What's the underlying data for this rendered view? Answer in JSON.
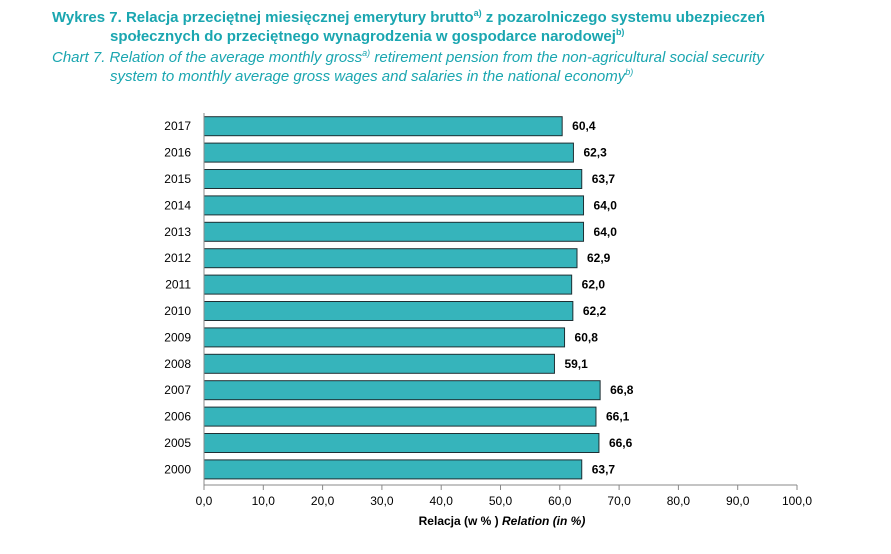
{
  "header": {
    "title_pl_line1": "Wykres 7. Relacja przeciętnej miesięcznej emerytury brutto",
    "title_pl_sup1": "a)",
    "title_pl_line1_end": " z pozarolniczego systemu ubezpieczeń",
    "title_pl_line2": "społecznych do przeciętnego wynagrodzenia w gospodarce narodowej",
    "title_pl_sup2": "b)",
    "title_en_line1": "Chart 7. Relation of the average monthly gross",
    "title_en_sup1": "a)",
    "title_en_line1_end": " retirement pension from the non-agricultural social security",
    "title_en_line2": "system to monthly average gross wages and salaries in the national economy",
    "title_en_sup2": "b)"
  },
  "chart_data": {
    "type": "bar",
    "orientation": "horizontal",
    "categories": [
      "2017",
      "2016",
      "2015",
      "2014",
      "2013",
      "2012",
      "2011",
      "2010",
      "2009",
      "2008",
      "2007",
      "2006",
      "2005",
      "2000"
    ],
    "values": [
      60.4,
      62.3,
      63.7,
      64.0,
      64.0,
      62.9,
      62.0,
      62.2,
      60.8,
      59.1,
      66.8,
      66.1,
      66.6,
      63.7
    ],
    "value_labels": [
      "60,4",
      "62,3",
      "63,7",
      "64,0",
      "64,0",
      "62,9",
      "62,0",
      "62,2",
      "60,8",
      "59,1",
      "66,8",
      "66,1",
      "66,6",
      "63,7"
    ],
    "xlim": [
      0,
      100
    ],
    "xticks": [
      0,
      10,
      20,
      30,
      40,
      50,
      60,
      70,
      80,
      90,
      100
    ],
    "xtick_labels": [
      "0,0",
      "10,0",
      "20,0",
      "30,0",
      "40,0",
      "50,0",
      "60,0",
      "70,0",
      "80,0",
      "90,0",
      "100,0"
    ],
    "xlabel_pl": "Relacja (w % )",
    "xlabel_en": "Relation (in %)",
    "grid": false,
    "bar_color": "#36b4bb",
    "bar_edge_color": "#1e2f33"
  }
}
